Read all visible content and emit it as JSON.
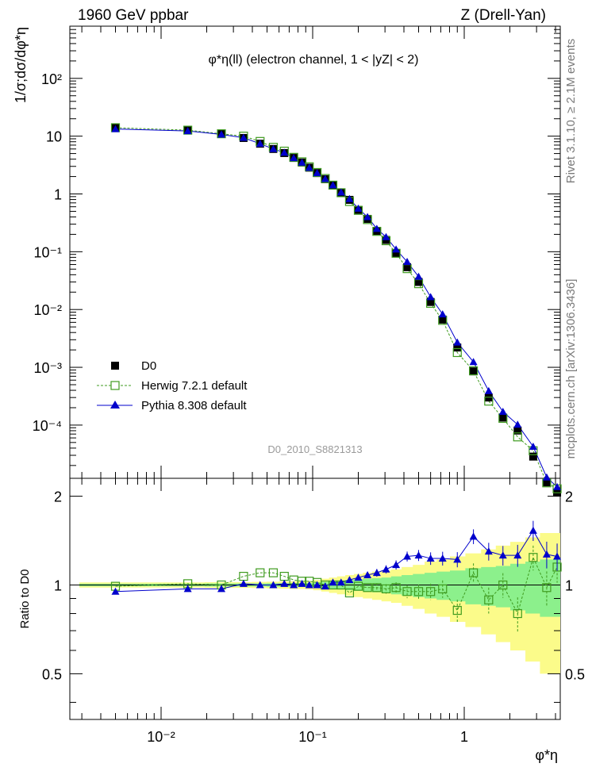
{
  "header": {
    "left": "1960 GeV ppbar",
    "right": "Z (Drell-Yan)"
  },
  "side_labels": {
    "rivet": "Rivet 3.1.10, ≥ 2.1M events",
    "mcplots": "mcplots.cern.ch [arXiv:1306.3436]"
  },
  "chart_data": {
    "type": "scatter",
    "title": "φ*η(ll) (electron channel, 1 < |yZ| < 2)",
    "watermark": "D0_2010_S8821313",
    "ylabel": "1/σ;dσ/dφ*η",
    "ratio_ylabel": "Ratio to D0",
    "xlabel": "φ*η",
    "x_log": true,
    "y_log": true,
    "xlim": [
      0.0025,
      4.3
    ],
    "ylim": [
      1.2e-05,
      800
    ],
    "ratio_ylim": [
      0.35,
      2.3
    ],
    "x_ticks": [
      "10⁻²",
      "10⁻¹",
      "1"
    ],
    "y_ticks": [
      "10⁻⁴",
      "10⁻³",
      "10⁻²",
      "10⁻¹",
      "1",
      "10",
      "10²"
    ],
    "ratio_ticks": [
      "0.5",
      "1",
      "2"
    ],
    "legend_position": "bottom-left",
    "x": [
      0.005,
      0.015,
      0.025,
      0.035,
      0.045,
      0.055,
      0.065,
      0.075,
      0.085,
      0.095,
      0.107,
      0.121,
      0.136,
      0.154,
      0.175,
      0.2,
      0.23,
      0.265,
      0.305,
      0.355,
      0.42,
      0.5,
      0.6,
      0.72,
      0.9,
      1.15,
      1.45,
      1.8,
      2.25,
      2.85,
      3.5,
      4.1
    ],
    "series": [
      {
        "name": "D0",
        "marker": "filled-square",
        "color": "#000000",
        "values": [
          14.2,
          12.6,
          11.0,
          9.3,
          7.4,
          6.0,
          5.1,
          4.2,
          3.5,
          2.85,
          2.3,
          1.8,
          1.4,
          1.05,
          0.79,
          0.53,
          0.37,
          0.23,
          0.16,
          0.095,
          0.054,
          0.03,
          0.0135,
          0.0067,
          0.0022,
          0.00085,
          0.0003,
          0.000135,
          8.05e-05,
          2.85e-05,
          1.02e-05,
          6.8e-06
        ]
      },
      {
        "name": "Herwig 7.2.1 default",
        "marker": "open-square",
        "color": "#3f9b1f",
        "values": [
          14.0,
          12.7,
          11.0,
          10.0,
          8.1,
          6.4,
          5.5,
          4.3,
          3.6,
          2.95,
          2.35,
          1.85,
          1.42,
          1.05,
          0.74,
          0.52,
          0.36,
          0.225,
          0.155,
          0.094,
          0.051,
          0.028,
          0.0128,
          0.0065,
          0.0018,
          0.00087,
          0.00026,
          0.000131,
          6.25e-05,
          3.6e-05,
          1e-05,
          7.9e-06
        ]
      },
      {
        "name": "Pythia 8.308 default",
        "marker": "filled-triangle",
        "color": "#0000cc",
        "values": [
          13.3,
          12.3,
          10.7,
          9.4,
          7.4,
          6.0,
          5.2,
          4.2,
          3.5,
          2.85,
          2.3,
          1.82,
          1.42,
          1.07,
          0.82,
          0.56,
          0.4,
          0.25,
          0.18,
          0.11,
          0.067,
          0.037,
          0.0165,
          0.0083,
          0.0027,
          0.00124,
          0.00039,
          0.000171,
          0.000102,
          4.25e-05,
          1.25e-05,
          8.5e-06
        ]
      }
    ],
    "ratios": [
      {
        "name": "Herwig 7.2.1 default",
        "values": [
          0.99,
          1.01,
          1.0,
          1.07,
          1.1,
          1.1,
          1.07,
          1.04,
          1.03,
          1.03,
          1.02,
          1.0,
          1.0,
          1.0,
          0.94,
          0.99,
          0.98,
          0.98,
          0.97,
          0.98,
          0.95,
          0.95,
          0.95,
          0.97,
          0.82,
          1.1,
          0.89,
          1.0,
          0.8,
          1.24,
          0.98,
          1.15
        ]
      },
      {
        "name": "Pythia 8.308 default",
        "values": [
          0.95,
          0.97,
          0.97,
          1.01,
          1.0,
          1.0,
          1.01,
          1.0,
          1.01,
          1.0,
          1.0,
          0.99,
          1.02,
          1.02,
          1.04,
          1.06,
          1.08,
          1.1,
          1.13,
          1.17,
          1.25,
          1.26,
          1.23,
          1.23,
          1.22,
          1.46,
          1.3,
          1.26,
          1.26,
          1.53,
          1.27,
          1.25
        ]
      }
    ],
    "ratio_bands": {
      "stat_green": [
        0.01,
        0.01,
        0.012,
        0.012,
        0.012,
        0.014,
        0.014,
        0.015,
        0.015,
        0.016,
        0.02,
        0.025,
        0.03,
        0.035,
        0.04,
        0.045,
        0.05,
        0.055,
        0.06,
        0.07,
        0.08,
        0.09,
        0.1,
        0.11,
        0.12,
        0.14,
        0.15,
        0.16,
        0.18,
        0.2,
        0.22,
        0.22
      ],
      "total_yellow": [
        0.02,
        0.02,
        0.022,
        0.022,
        0.024,
        0.026,
        0.028,
        0.03,
        0.03,
        0.032,
        0.04,
        0.05,
        0.06,
        0.07,
        0.08,
        0.09,
        0.1,
        0.11,
        0.12,
        0.13,
        0.15,
        0.17,
        0.2,
        0.22,
        0.25,
        0.28,
        0.32,
        0.36,
        0.4,
        0.45,
        0.5,
        0.5
      ]
    }
  }
}
